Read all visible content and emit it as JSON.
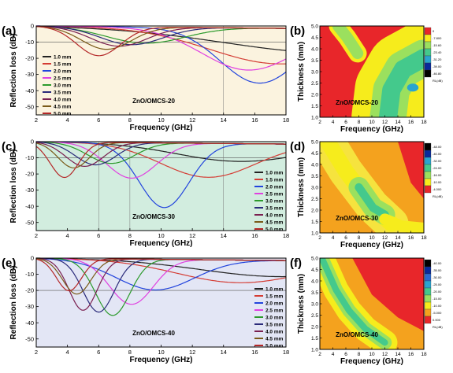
{
  "chart_data": [
    {
      "panel": "(a)",
      "type": "line",
      "xlabel": "Frequency (GHz)",
      "ylabel": "Reflection loss (dB)",
      "xlim": [
        2,
        18
      ],
      "ylim": [
        -55,
        0
      ],
      "xticks": [
        2,
        4,
        6,
        8,
        10,
        12,
        14,
        16,
        18
      ],
      "yticks": [
        0,
        -10,
        -20,
        -30,
        -40,
        -50
      ],
      "background": "#fbf3df",
      "vlines": [
        14
      ],
      "hline": -10,
      "sample_label": "ZnO/OMCS-20",
      "legend_position": "left-center",
      "series": [
        {
          "name": "1.0 mm",
          "color": "#222222",
          "min_at": 21.0,
          "min_rl": -15.0,
          "width": 7.0
        },
        {
          "name": "1.5 mm",
          "color": "#d43c34",
          "min_at": 17.6,
          "min_rl": -22.0,
          "width": 4.5
        },
        {
          "name": "2.0 mm",
          "color": "#2244dd",
          "min_at": 16.3,
          "min_rl": -34.0,
          "width": 2.5
        },
        {
          "name": "2.5 mm",
          "color": "#e040e0",
          "min_at": 15.6,
          "min_rl": -26.0,
          "width": 3.0
        },
        {
          "name": "3.0 mm",
          "color": "#2c9a2c",
          "min_at": 9.0,
          "min_rl": -10.0,
          "width": 2.5
        },
        {
          "name": "3.5 mm",
          "color": "#2a2a7a",
          "min_at": 8.1,
          "min_rl": -11.0,
          "width": 2.0
        },
        {
          "name": "4.0 mm",
          "color": "#7a2050",
          "min_at": 7.3,
          "min_rl": -12.0,
          "width": 1.8
        },
        {
          "name": "4.5 mm",
          "color": "#7a5a18",
          "min_at": 6.5,
          "min_rl": -14.0,
          "width": 1.6
        },
        {
          "name": "5.0 mm",
          "color": "#b42828",
          "min_at": 6.0,
          "min_rl": -18.0,
          "width": 1.4
        }
      ]
    },
    {
      "panel": "(c)",
      "type": "line",
      "xlabel": "Frequency (GHz)",
      "ylabel": "Reflection loss (dB)",
      "xlim": [
        2,
        18
      ],
      "ylim": [
        -55,
        0
      ],
      "xticks": [
        2,
        4,
        6,
        8,
        10,
        12,
        14,
        16,
        18
      ],
      "yticks": [
        0,
        -10,
        -20,
        -30,
        -40,
        -50
      ],
      "background": "#d2eddf",
      "vlines": [
        6,
        8,
        14
      ],
      "hline": -10,
      "sample_label": "ZnO/OMCS-30",
      "legend_position": "right-center",
      "series": [
        {
          "name": "1.0 mm",
          "color": "#222222",
          "min_at": 15.0,
          "min_rl": -11.0,
          "width": 4.0
        },
        {
          "name": "1.5 mm",
          "color": "#d43c34",
          "min_at": 13.0,
          "min_rl": -21.0,
          "width": 3.0
        },
        {
          "name": "2.0 mm",
          "color": "#2244dd",
          "min_at": 10.2,
          "min_rl": -40.0,
          "width": 1.6
        },
        {
          "name": "2.5 mm",
          "color": "#e040e0",
          "min_at": 8.1,
          "min_rl": -22.0,
          "width": 1.6
        },
        {
          "name": "3.0 mm",
          "color": "#2c9a2c",
          "min_at": 6.8,
          "min_rl": -13.0,
          "width": 1.5
        },
        {
          "name": "3.5 mm",
          "color": "#2a2a7a",
          "min_at": 5.8,
          "min_rl": -14.0,
          "width": 1.3
        },
        {
          "name": "4.0 mm",
          "color": "#7a2050",
          "min_at": 5.1,
          "min_rl": -15.0,
          "width": 1.2
        },
        {
          "name": "4.5 mm",
          "color": "#7a5a18",
          "min_at": 4.4,
          "min_rl": -16.0,
          "width": 1.0
        },
        {
          "name": "5.0 mm",
          "color": "#b42828",
          "min_at": 3.8,
          "min_rl": -22.0,
          "width": 0.9
        }
      ]
    },
    {
      "panel": "(e)",
      "type": "line",
      "xlabel": "Frequency (GHz)",
      "ylabel": "Reflection loss (dB)",
      "xlim": [
        2,
        18
      ],
      "ylim": [
        -55,
        0
      ],
      "xticks": [
        2,
        4,
        6,
        8,
        10,
        12,
        14,
        16,
        18
      ],
      "yticks": [
        0,
        -10,
        -20,
        -30,
        -40,
        -50
      ],
      "background": "#e3e6f5",
      "vlines": [],
      "hline": -20,
      "sample_label": "ZnO/OMCS-40",
      "legend_position": "right-center",
      "series": [
        {
          "name": "1.0 mm",
          "color": "#222222",
          "min_at": 17.5,
          "min_rl": -10.0,
          "width": 5.0
        },
        {
          "name": "1.5 mm",
          "color": "#d43c34",
          "min_at": 15.0,
          "min_rl": -14.0,
          "width": 4.0
        },
        {
          "name": "2.0 mm",
          "color": "#2244dd",
          "min_at": 9.6,
          "min_rl": -19.0,
          "width": 2.5
        },
        {
          "name": "2.5 mm",
          "color": "#e040e0",
          "min_at": 8.1,
          "min_rl": -28.0,
          "width": 1.4
        },
        {
          "name": "3.0 mm",
          "color": "#2c9a2c",
          "min_at": 6.9,
          "min_rl": -35.0,
          "width": 1.1
        },
        {
          "name": "3.5 mm",
          "color": "#2a2a7a",
          "min_at": 6.0,
          "min_rl": -33.0,
          "width": 1.0
        },
        {
          "name": "4.0 mm",
          "color": "#7a2050",
          "min_at": 5.0,
          "min_rl": -32.0,
          "width": 0.9
        },
        {
          "name": "4.5 mm",
          "color": "#7a5a18",
          "min_at": 4.6,
          "min_rl": -22.0,
          "width": 0.9
        },
        {
          "name": "5.0 mm",
          "color": "#b42828",
          "min_at": 4.1,
          "min_rl": -20.0,
          "width": 0.8
        }
      ]
    },
    {
      "panel": "(b)",
      "type": "heatmap",
      "xlabel": "Frequency (GHz)",
      "ylabel": "Thickness (mm)",
      "xlim": [
        2,
        18
      ],
      "ylim": [
        1.0,
        5.0
      ],
      "xticks": [
        2,
        4,
        6,
        8,
        10,
        12,
        14,
        16,
        18
      ],
      "yticks": [
        1.0,
        1.5,
        2.0,
        2.5,
        3.0,
        3.5,
        4.0,
        4.5,
        5.0
      ],
      "sample_label": "ZnO/OMCS-20",
      "base_color": "#e8262a",
      "legend_title": "RL(dB)",
      "legend_values": [
        "0",
        "-7.800",
        "-15.60",
        "-23.40",
        "-31.20",
        "-39.00",
        "-46.80"
      ],
      "legend_colors": [
        "#e8262a",
        "#f6ec1c",
        "#9be05e",
        "#44c98c",
        "#2aa4cf",
        "#0a2a9a",
        "#000000"
      ],
      "zones": [
        {
          "kind": "ridge",
          "points": [
            [
              4.8,
              5.0
            ],
            [
              6.2,
              4.5
            ],
            [
              7.8,
              3.8
            ]
          ],
          "widths": [
            0.4,
            0.25
          ],
          "colors": [
            "#f6ec1c",
            "#9be05e"
          ]
        },
        {
          "kind": "band",
          "points": [
            [
              12.5,
              1.0
            ],
            [
              13.0,
              2.2
            ],
            [
              14.8,
              3.1
            ],
            [
              18.0,
              3.6
            ]
          ],
          "widths": [
            1.6,
            0.8,
            0.4
          ],
          "colors": [
            "#f6ec1c",
            "#9be05e",
            "#44c98c"
          ]
        },
        {
          "kind": "spot",
          "center": [
            16.3,
            2.3
          ],
          "r": 0.25,
          "color": "#2aa4cf"
        }
      ]
    },
    {
      "panel": "(d)",
      "type": "heatmap",
      "xlabel": "Frequency (GHz)",
      "ylabel": "Thickness (mm)",
      "xlim": [
        2,
        18
      ],
      "ylim": [
        1.0,
        5.0
      ],
      "xticks": [
        2,
        4,
        6,
        8,
        10,
        12,
        14,
        16,
        18
      ],
      "yticks": [
        1.0,
        1.5,
        2.0,
        2.5,
        3.0,
        3.5,
        4.0,
        4.5,
        5.0
      ],
      "sample_label": "ZnO/OMCS-30",
      "base_color": "#f4a21e",
      "legend_title": "RL(dB)",
      "legend_values": [
        "-48.00",
        "-40.00",
        "-32.00",
        "-24.00",
        "-16.00",
        "-10.00",
        "-4.000"
      ],
      "legend_colors": [
        "#000000",
        "#0a2a9a",
        "#2aa4cf",
        "#44c98c",
        "#9be05e",
        "#f6ec1c",
        "#e8262a"
      ],
      "zones": [
        {
          "kind": "ridge",
          "points": [
            [
              3.2,
              5.0
            ],
            [
              6.0,
              3.7
            ],
            [
              10.0,
              2.2
            ],
            [
              13.0,
              1.4
            ]
          ],
          "widths": [
            0.75,
            0.35
          ],
          "colors": [
            "#f6e33e",
            "#f6ec1c"
          ]
        },
        {
          "kind": "ridge",
          "points": [
            [
              8.0,
              3.0
            ],
            [
              10.2,
              2.1
            ],
            [
              12.0,
              1.8
            ]
          ],
          "widths": [
            0.45,
            0.18
          ],
          "colors": [
            "#9be05e",
            "#44c98c"
          ]
        },
        {
          "kind": "ridge",
          "points": [
            [
              12.0,
              1.6
            ],
            [
              14.5,
              1.3
            ],
            [
              18.0,
              1.2
            ]
          ],
          "widths": [
            0.25
          ],
          "colors": [
            "#f6ec1c"
          ]
        },
        {
          "kind": "region",
          "points": [
            [
              14.0,
              5.0
            ],
            [
              18.0,
              5.0
            ],
            [
              18.0,
              2.5
            ],
            [
              16.0,
              3.2
            ]
          ],
          "color": "#e8262a"
        }
      ]
    },
    {
      "panel": "(f)",
      "type": "heatmap",
      "xlabel": "Frequency (GHz)",
      "ylabel": "Thickness (mm)",
      "xlim": [
        2,
        18
      ],
      "ylim": [
        1.0,
        5.0
      ],
      "xticks": [
        2,
        4,
        6,
        8,
        10,
        12,
        14,
        16,
        18
      ],
      "yticks": [
        1.0,
        1.5,
        2.0,
        2.5,
        3.0,
        3.5,
        4.0,
        4.5,
        5.0
      ],
      "sample_label": "ZnO/OMCS-40",
      "base_color": "#f4a21e",
      "legend_title": "RL(dB)",
      "legend_values": [
        "-40.00",
        "-35.00",
        "-30.00",
        "-25.00",
        "-20.00",
        "-15.00",
        "-10.00",
        "-5.000",
        "0.000"
      ],
      "legend_colors": [
        "#000000",
        "#0a2a9a",
        "#2a6ad0",
        "#2aa4cf",
        "#44c98c",
        "#9be05e",
        "#f6ec1c",
        "#f4a21e",
        "#e8262a"
      ],
      "zones": [
        {
          "kind": "region",
          "points": [
            [
              7.0,
              5.0
            ],
            [
              18.0,
              5.0
            ],
            [
              18.0,
              1.8
            ],
            [
              14.0,
              2.4
            ],
            [
              10.0,
              3.4
            ]
          ],
          "color": "#e8262a"
        },
        {
          "kind": "ridge",
          "points": [
            [
              2.3,
              5.0
            ],
            [
              4.5,
              3.6
            ],
            [
              6.5,
              2.7
            ],
            [
              9.0,
              1.9
            ],
            [
              12.0,
              1.3
            ]
          ],
          "widths": [
            0.55,
            0.3,
            0.14
          ],
          "colors": [
            "#f6ec1c",
            "#9be05e",
            "#44c98c"
          ]
        }
      ]
    }
  ]
}
